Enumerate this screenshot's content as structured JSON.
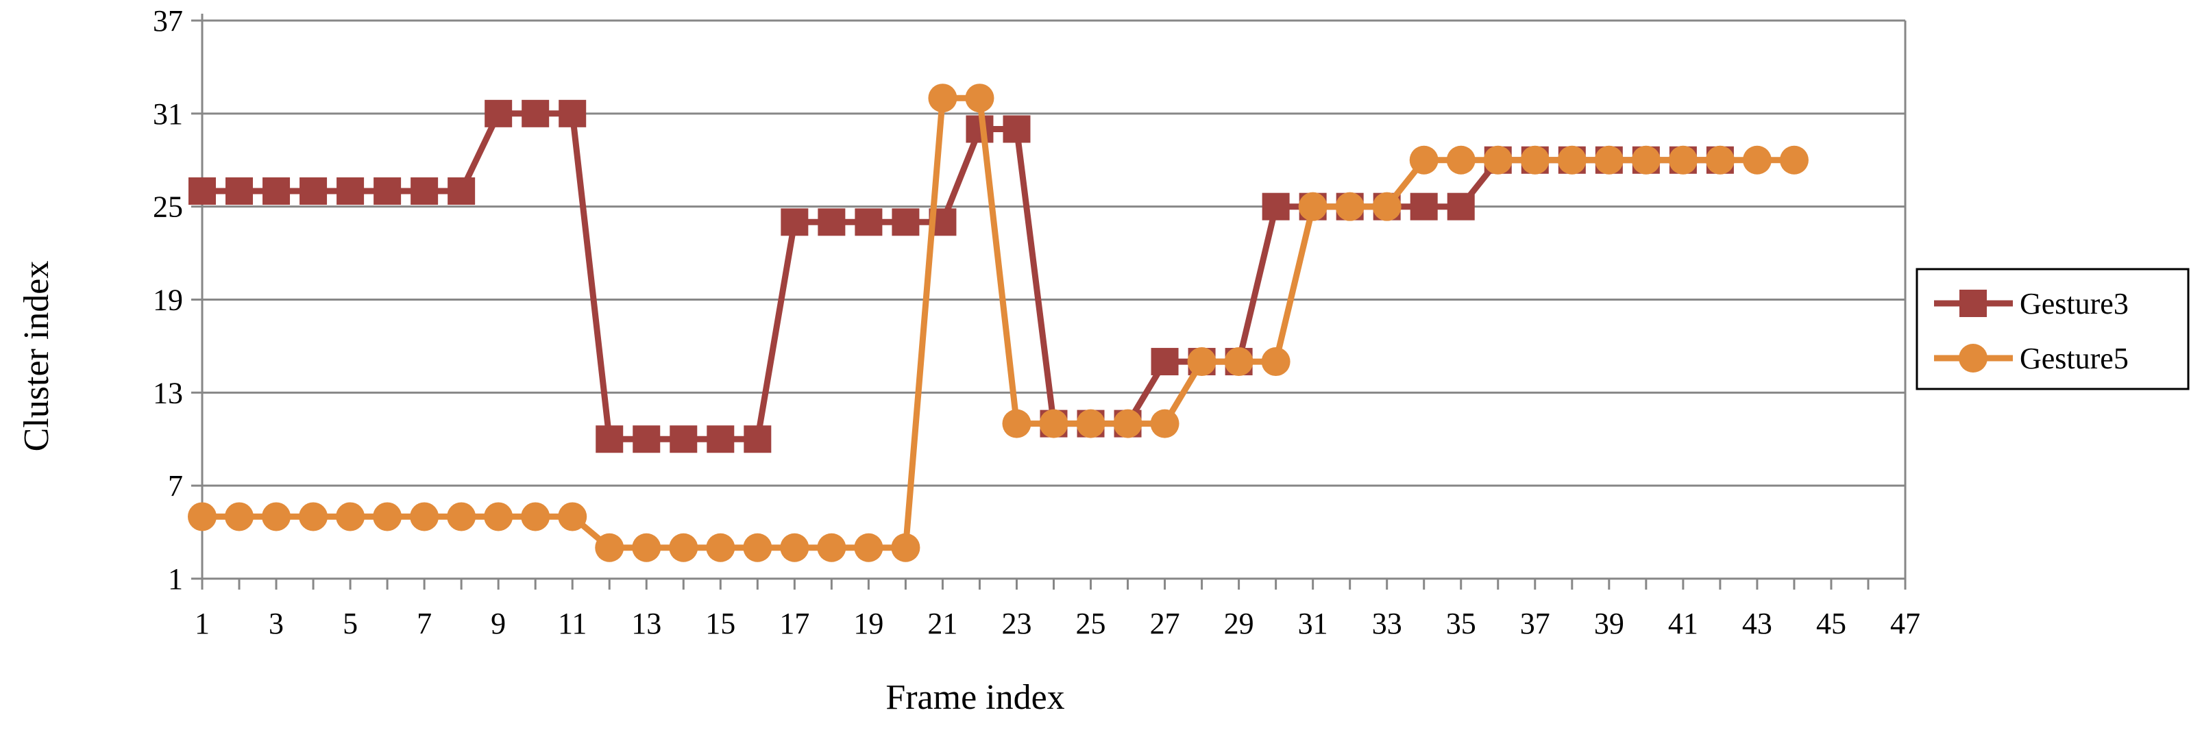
{
  "chart_data": {
    "type": "line",
    "title": "",
    "xlabel": "Frame index",
    "ylabel": "Cluster index",
    "xlim": [
      1,
      47
    ],
    "ylim": [
      1,
      37
    ],
    "xticks": [
      1,
      3,
      5,
      7,
      9,
      11,
      13,
      15,
      17,
      19,
      21,
      23,
      25,
      27,
      29,
      31,
      33,
      35,
      37,
      39,
      41,
      43,
      45,
      47
    ],
    "yticks": [
      1,
      7,
      13,
      19,
      25,
      31,
      37
    ],
    "grid": true,
    "legend_position": "right",
    "series": [
      {
        "name": "Gesture3",
        "color": "#A0413E",
        "marker": "square",
        "x": [
          1,
          2,
          3,
          4,
          5,
          6,
          7,
          8,
          9,
          10,
          11,
          12,
          13,
          14,
          15,
          16,
          17,
          18,
          19,
          20,
          21,
          22,
          23,
          24,
          25,
          26,
          27,
          28,
          29,
          30,
          31,
          32,
          33,
          34,
          35,
          36,
          37,
          38,
          39,
          40,
          41,
          42
        ],
        "y": [
          26,
          26,
          26,
          26,
          26,
          26,
          26,
          26,
          31,
          31,
          31,
          10,
          10,
          10,
          10,
          10,
          24,
          24,
          24,
          24,
          24,
          30,
          30,
          11,
          11,
          11,
          15,
          15,
          15,
          25,
          25,
          25,
          25,
          25,
          25,
          28,
          28,
          28,
          28,
          28,
          28,
          28
        ]
      },
      {
        "name": "Gesture5",
        "color": "#E28B3A",
        "marker": "circle",
        "x": [
          1,
          2,
          3,
          4,
          5,
          6,
          7,
          8,
          9,
          10,
          11,
          12,
          13,
          14,
          15,
          16,
          17,
          18,
          19,
          20,
          21,
          22,
          23,
          24,
          25,
          26,
          27,
          28,
          29,
          30,
          31,
          32,
          33,
          34,
          35,
          36,
          37,
          38,
          39,
          40,
          41,
          42,
          43,
          44
        ],
        "y": [
          5,
          5,
          5,
          5,
          5,
          5,
          5,
          5,
          5,
          5,
          5,
          3,
          3,
          3,
          3,
          3,
          3,
          3,
          3,
          3,
          32,
          32,
          11,
          11,
          11,
          11,
          11,
          15,
          15,
          15,
          25,
          25,
          25,
          28,
          28,
          28,
          28,
          28,
          28,
          28,
          28,
          28,
          28,
          28
        ]
      }
    ]
  }
}
